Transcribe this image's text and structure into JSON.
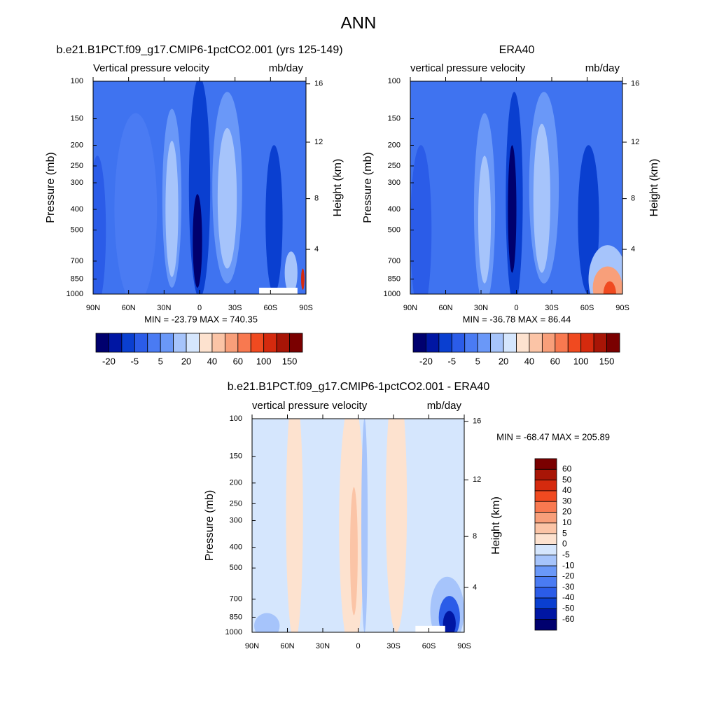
{
  "title": "ANN",
  "panels": [
    {
      "case": "b.e21.B1PCT.f09_g17.CMIP6-1pctCO2.001 (yrs 125-149)",
      "left_label": "Vertical pressure velocity",
      "right_label": "mb/day",
      "y_label": "Pressure (mb)",
      "y2_label": "Height (km)",
      "ylim": [
        1000,
        100
      ],
      "ylog": true,
      "yticks": [
        100,
        150,
        200,
        250,
        300,
        400,
        500,
        700,
        850,
        1000
      ],
      "y2ticks": [
        4,
        8,
        12,
        16
      ],
      "xticks": [
        "90N",
        "60N",
        "30N",
        "0",
        "30S",
        "60S",
        "90S"
      ],
      "stats": "MIN = -23.79  MAX = 740.35",
      "colorbar": {
        "orientation": "horizontal",
        "labels": [
          -20,
          -5,
          5,
          20,
          40,
          60,
          100,
          150
        ],
        "colors": [
          "#00006e",
          "#0016a3",
          "#0a3fd0",
          "#2b5ce8",
          "#4a7bf3",
          "#6a98f8",
          "#a6c4fb",
          "#d5e6fd",
          "#fde2cf",
          "#fbc4a6",
          "#f89f7a",
          "#f87950",
          "#f04a20",
          "#d52a0e",
          "#a81506",
          "#7a0000"
        ]
      }
    },
    {
      "case": "ERA40",
      "left_label": "vertical pressure velocity",
      "right_label": "mb/day",
      "y_label": "Pressure (mb)",
      "y2_label": "Height (km)",
      "ylim": [
        1000,
        100
      ],
      "ylog": true,
      "yticks": [
        100,
        150,
        200,
        250,
        300,
        400,
        500,
        700,
        850,
        1000
      ],
      "y2ticks": [
        4,
        8,
        12,
        16
      ],
      "xticks": [
        "90N",
        "60N",
        "30N",
        "0",
        "30S",
        "60S",
        "90S"
      ],
      "stats": "MIN = -36.78  MAX =  86.44",
      "colorbar": {
        "orientation": "horizontal",
        "labels": [
          -20,
          -5,
          5,
          20,
          40,
          60,
          100,
          150
        ],
        "colors": [
          "#00006e",
          "#0016a3",
          "#0a3fd0",
          "#2b5ce8",
          "#4a7bf3",
          "#6a98f8",
          "#a6c4fb",
          "#d5e6fd",
          "#fde2cf",
          "#fbc4a6",
          "#f89f7a",
          "#f87950",
          "#f04a20",
          "#d52a0e",
          "#a81506",
          "#7a0000"
        ]
      }
    },
    {
      "case": "b.e21.B1PCT.f09_g17.CMIP6-1pctCO2.001 - ERA40",
      "left_label": "vertical pressure velocity",
      "right_label": "mb/day",
      "y_label": "Pressure (mb)",
      "y2_label": "Height (km)",
      "ylim": [
        1000,
        100
      ],
      "ylog": true,
      "yticks": [
        100,
        150,
        200,
        250,
        300,
        400,
        500,
        700,
        850,
        1000
      ],
      "y2ticks": [
        4,
        8,
        12,
        16
      ],
      "xticks": [
        "90N",
        "60N",
        "30N",
        "0",
        "30S",
        "60S",
        "90S"
      ],
      "stats": "MIN = -68.47  MAX = 205.89",
      "colorbar": {
        "orientation": "vertical",
        "labels": [
          60,
          50,
          40,
          30,
          20,
          10,
          5,
          0,
          -5,
          -10,
          -20,
          -30,
          -40,
          -50,
          -60
        ],
        "colors": [
          "#7a0000",
          "#a81506",
          "#d52a0e",
          "#f04a20",
          "#f87950",
          "#f89f7a",
          "#fbc4a6",
          "#fde2cf",
          "#d5e6fd",
          "#a6c4fb",
          "#6a98f8",
          "#4a7bf3",
          "#2b5ce8",
          "#0a3fd0",
          "#0016a3",
          "#00006e"
        ]
      }
    }
  ]
}
